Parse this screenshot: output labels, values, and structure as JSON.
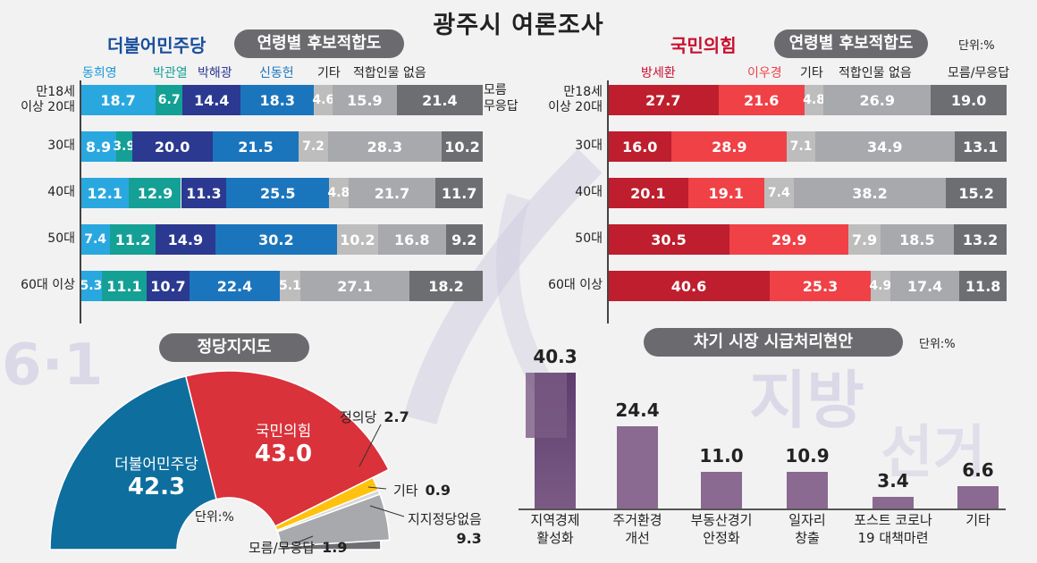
{
  "title": "광주시 여론조사",
  "left_panel": {
    "party": "더불어민주당",
    "subtitle": "연령별 후보적합도",
    "candidates": [
      "동희영",
      "박관열",
      "박해광",
      "신동헌",
      "기타",
      "적합인물 없음",
      "모름\n무응답"
    ],
    "colors": [
      "#29a8e0",
      "#14a095",
      "#2b3990",
      "#1b75bc",
      "#bdbdbd",
      "#a7a9ac",
      "#6d6e71"
    ],
    "rows": [
      {
        "label": "만18세\n이상 20대",
        "values": [
          18.7,
          6.7,
          14.4,
          18.3,
          4.6,
          15.9,
          21.4
        ]
      },
      {
        "label": "30대",
        "values": [
          8.9,
          3.9,
          20.0,
          21.5,
          7.2,
          28.3,
          10.2
        ]
      },
      {
        "label": "40대",
        "values": [
          12.1,
          12.9,
          11.3,
          25.5,
          4.8,
          21.7,
          11.7
        ]
      },
      {
        "label": "50대",
        "values": [
          7.4,
          11.2,
          14.9,
          30.2,
          10.2,
          16.8,
          9.2
        ]
      },
      {
        "label": "60대 이상",
        "values": [
          5.3,
          11.1,
          10.7,
          22.4,
          5.1,
          27.1,
          18.2
        ]
      }
    ]
  },
  "right_panel": {
    "party": "국민의힘",
    "subtitle": "연령별 후보적합도",
    "unit": "단위:%",
    "candidates": [
      "방세환",
      "이우경",
      "기타",
      "적합인물 없음",
      "모름/무응답"
    ],
    "colors": [
      "#be1e2d",
      "#ef4146",
      "#bdbdbd",
      "#a7a9ac",
      "#6d6e71"
    ],
    "rows": [
      {
        "label": "만18세\n이상 20대",
        "values": [
          27.7,
          21.6,
          4.8,
          26.9,
          19.0
        ]
      },
      {
        "label": "30대",
        "values": [
          16.0,
          28.9,
          7.1,
          34.9,
          13.1
        ]
      },
      {
        "label": "40대",
        "values": [
          20.1,
          19.1,
          7.4,
          38.2,
          15.2
        ]
      },
      {
        "label": "50대",
        "values": [
          30.5,
          29.9,
          7.9,
          18.5,
          13.2
        ]
      },
      {
        "label": "60대 이상",
        "values": [
          40.6,
          25.3,
          4.9,
          17.4,
          11.8
        ]
      }
    ]
  },
  "party_support": {
    "subtitle": "정당지지도",
    "unit": "단위:%",
    "slices": [
      {
        "name": "더불어민주당",
        "value": 42.3,
        "color": "#0e6e9e"
      },
      {
        "name": "국민의힘",
        "value": 43.0,
        "color": "#d9323a"
      },
      {
        "name": "정의당",
        "value": 2.7,
        "color": "#ffc20e"
      },
      {
        "name": "기타",
        "value": 0.9,
        "color": "#d8d8d8"
      },
      {
        "name": "지지정당없음",
        "value": 9.3,
        "color": "#a7a9ac"
      },
      {
        "name": "모름/무응답",
        "value": 1.9,
        "color": "#6d6e71"
      }
    ]
  },
  "issues": {
    "subtitle": "차기 시장 시급처리현안",
    "unit": "단위:%",
    "bar_color": "#8a6a90",
    "bars": [
      {
        "label": "지역경제\n활성화",
        "value": 40.3
      },
      {
        "label": "주거환경\n개선",
        "value": 24.4
      },
      {
        "label": "부동산경기\n안정화",
        "value": 11.0
      },
      {
        "label": "일자리\n창출",
        "value": 10.9
      },
      {
        "label": "포스트 코로나\n19 대책마련",
        "value": 3.4
      },
      {
        "label": "기타",
        "value": 6.6
      }
    ]
  },
  "watermark": {
    "left": "6·1",
    "right1": "지방",
    "right2": "선거"
  }
}
